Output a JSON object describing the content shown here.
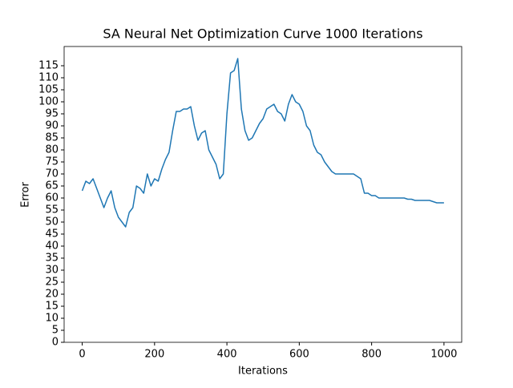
{
  "chart_data": {
    "type": "line",
    "title": "SA Neural Net Optimization Curve 1000 Iterations",
    "x_label": "Iterations",
    "y_label": "Error",
    "x": [
      0,
      10,
      20,
      30,
      40,
      50,
      60,
      70,
      80,
      90,
      100,
      110,
      120,
      130,
      140,
      150,
      160,
      170,
      180,
      190,
      200,
      210,
      220,
      230,
      240,
      250,
      260,
      270,
      280,
      290,
      300,
      310,
      320,
      330,
      340,
      350,
      360,
      370,
      380,
      390,
      400,
      410,
      420,
      430,
      440,
      450,
      460,
      470,
      480,
      490,
      500,
      510,
      520,
      530,
      540,
      550,
      560,
      570,
      580,
      590,
      600,
      610,
      620,
      630,
      640,
      650,
      660,
      670,
      680,
      690,
      700,
      710,
      720,
      730,
      740,
      750,
      760,
      770,
      780,
      790,
      800,
      810,
      820,
      830,
      840,
      850,
      860,
      870,
      880,
      890,
      900,
      910,
      920,
      930,
      940,
      950,
      960,
      970,
      980,
      990,
      1000
    ],
    "values": [
      63,
      67,
      66,
      68,
      64,
      60,
      56,
      60,
      63,
      56,
      52,
      50,
      48,
      54,
      56,
      65,
      64,
      62,
      70,
      65,
      68,
      67,
      72,
      76,
      79,
      88,
      96,
      96,
      97,
      97,
      98,
      90,
      84,
      87,
      88,
      80,
      77,
      74,
      68,
      70,
      95,
      112,
      113,
      118,
      97,
      88,
      84,
      85,
      88,
      91,
      93,
      97,
      98,
      99,
      96,
      95,
      92,
      99,
      103,
      100,
      99,
      96,
      90,
      88,
      82,
      79,
      78,
      75,
      73,
      71,
      70,
      70,
      70,
      70,
      70,
      70,
      69,
      68,
      62,
      62,
      61,
      61,
      60,
      60,
      60,
      60,
      60,
      60,
      60,
      60,
      59.5,
      59.5,
      59,
      59,
      59,
      59,
      59,
      58.5,
      58,
      58,
      58
    ],
    "color": "#1f77b4",
    "xlim": [
      -50,
      1049
    ],
    "xticks": [
      0,
      200,
      400,
      600,
      800,
      1000
    ],
    "ylim": [
      0,
      123
    ],
    "yticks": [
      0,
      5,
      10,
      15,
      20,
      25,
      30,
      35,
      40,
      45,
      50,
      55,
      60,
      65,
      70,
      75,
      80,
      85,
      90,
      95,
      100,
      105,
      110,
      115
    ]
  }
}
